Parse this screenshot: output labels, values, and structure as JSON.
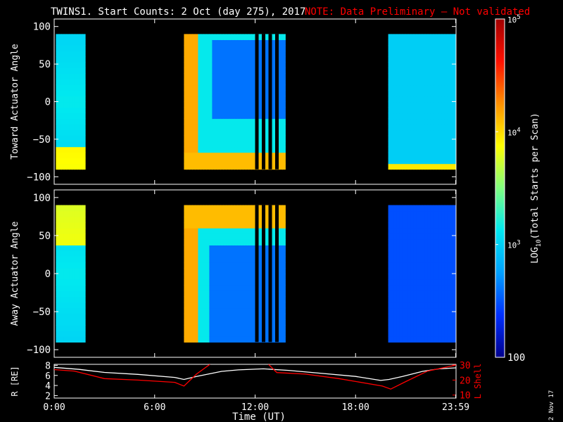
{
  "title": {
    "main": "TWINS1. Start Counts:  2 Oct (day 275), 2017",
    "note": "NOTE: Data Preliminary – Not validated",
    "note_color": "#ff0000"
  },
  "side_date": "2 Nov 17",
  "chart_data": [
    {
      "type": "heatmap",
      "ylabel": "Toward Actuator Angle",
      "ylim": [
        -110,
        110
      ],
      "yticks": [
        "100",
        "50",
        "0",
        "−50",
        "−100"
      ],
      "ytick_values": [
        100,
        50,
        0,
        -50,
        -100
      ],
      "coverage_hours": [
        [
          0.1,
          1.85
        ],
        [
          7.75,
          13.8
        ],
        [
          19.95,
          23.99
        ]
      ],
      "angle_range": [
        -90,
        90
      ]
    },
    {
      "type": "heatmap",
      "ylabel": "Away Actuator Angle",
      "ylim": [
        -110,
        110
      ],
      "yticks": [
        "100",
        "50",
        "0",
        "−50",
        "−100"
      ],
      "ytick_values": [
        100,
        50,
        0,
        -50,
        -100
      ],
      "coverage_hours": [
        [
          0.1,
          1.85
        ],
        [
          7.75,
          13.8
        ],
        [
          19.95,
          23.99
        ]
      ],
      "angle_range": [
        -90,
        90
      ]
    },
    {
      "type": "line",
      "ylabel": "R [RE]",
      "y2label": "L Shell",
      "xlabel": "Time (UT)",
      "xlim": [
        0,
        24
      ],
      "xticks": [
        "0:00",
        "6:00",
        "12:00",
        "18:00",
        "23:59"
      ],
      "xtick_values": [
        0,
        6,
        12,
        18,
        23.98
      ],
      "yticks": [
        "8",
        "6",
        "4",
        "2"
      ],
      "ytick_values": [
        8,
        6,
        4,
        2
      ],
      "ylim": [
        1.5,
        8.2
      ],
      "y2ticks": [
        "30",
        "20",
        "10"
      ],
      "y2tick_values": [
        30,
        20,
        10
      ],
      "y2lim": [
        8,
        30.5
      ],
      "series": [
        {
          "color": "#ffffff",
          "axis": "left",
          "x": [
            0,
            1.5,
            3,
            5,
            7.2,
            7.75,
            8.5,
            10,
            11,
            12.5,
            14,
            16,
            18,
            19.5,
            20,
            20.8,
            22,
            23,
            24
          ],
          "y": [
            7.6,
            7.2,
            6.6,
            6.2,
            5.6,
            5.2,
            5.8,
            6.8,
            7.1,
            7.3,
            7.0,
            6.4,
            5.8,
            5.0,
            5.2,
            5.8,
            6.8,
            7.3,
            7.5
          ]
        },
        {
          "color": "#ff0000",
          "axis": "right",
          "x": [
            0,
            1.2,
            3,
            5,
            7.2,
            7.75,
            8.5,
            9.3
          ],
          "y": [
            27,
            26,
            21,
            20,
            18.5,
            16,
            24,
            30.5
          ]
        },
        {
          "color": "#ff0000",
          "axis": "right",
          "x": [
            12.8,
            13.3,
            15,
            17,
            19.6,
            20.1,
            21,
            22.3,
            23.99
          ],
          "y": [
            30.5,
            25,
            24,
            21,
            16,
            14,
            19,
            26,
            30
          ]
        }
      ]
    }
  ],
  "colorbar": {
    "label": "LOG10(Total Starts per Scan)",
    "label_prefix": "LOG",
    "label_sub": "10",
    "label_suffix": "(Total Starts per Scan)",
    "ticks": [
      {
        "base": "10",
        "exp": "5",
        "value": 100000
      },
      {
        "base": "10",
        "exp": "4",
        "value": 10000
      },
      {
        "base": "10",
        "exp": "3",
        "value": 1000
      },
      {
        "base": "100",
        "exp": "",
        "value": 100
      }
    ],
    "range": [
      100,
      100000
    ],
    "colormap": [
      "#00008c",
      "#0030ff",
      "#00a0ff",
      "#00e8f0",
      "#80ff80",
      "#ffff00",
      "#ff9000",
      "#ff1000",
      "#a00000"
    ]
  }
}
